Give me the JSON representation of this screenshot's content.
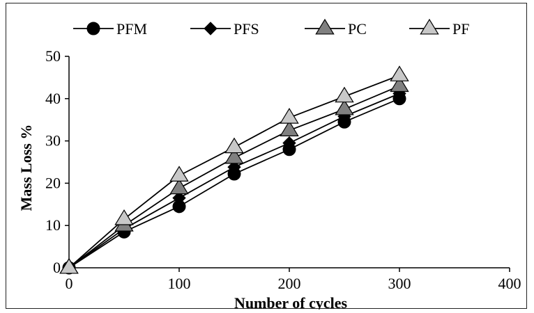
{
  "chart_data": {
    "type": "line",
    "title": "",
    "xlabel": "Number of cycles",
    "ylabel": "Mass Loss %",
    "xlim": [
      0,
      400
    ],
    "ylim": [
      0,
      50
    ],
    "xticks": [
      "0",
      "100",
      "200",
      "300",
      "400"
    ],
    "yticks": [
      "0",
      "10",
      "20",
      "30",
      "40",
      "50"
    ],
    "x": [
      0,
      50,
      100,
      150,
      200,
      250,
      300
    ],
    "grid": false,
    "legend_position": "top",
    "series": [
      {
        "name": "PFM",
        "marker": "circle",
        "color": "#000000",
        "values": [
          0,
          8.5,
          14.5,
          22.2,
          28.0,
          34.5,
          40.0
        ]
      },
      {
        "name": "PFS",
        "marker": "diamond",
        "color": "#000000",
        "values": [
          0,
          9.2,
          16.5,
          23.8,
          29.5,
          35.8,
          41.2
        ]
      },
      {
        "name": "PC",
        "marker": "triangle",
        "color": "#808080",
        "values": [
          0,
          10.0,
          18.8,
          26.0,
          32.5,
          37.5,
          43.0
        ]
      },
      {
        "name": "PF",
        "marker": "triangle",
        "color": "#c8c8c8",
        "values": [
          0,
          11.5,
          21.8,
          28.5,
          35.5,
          40.5,
          45.5
        ]
      }
    ]
  }
}
